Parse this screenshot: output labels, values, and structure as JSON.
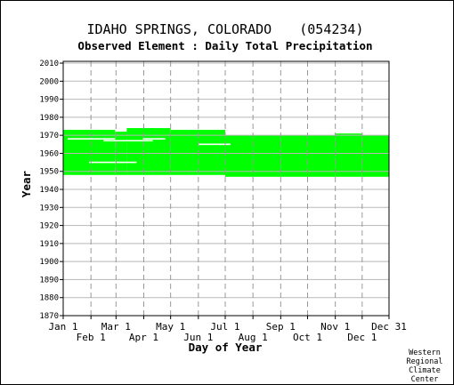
{
  "chart_data": {
    "type": "area",
    "title": "IDAHO SPRINGS, COLORADO",
    "station_id": "(054234)",
    "subtitle": "Observed Element : Daily Total Precipitation",
    "xlabel": "Day of Year",
    "ylabel": "Year",
    "ylim": [
      1870,
      2011
    ],
    "xlim": [
      1,
      365
    ],
    "grid": true,
    "series_color": "#00ff00",
    "ticks_top_row": [
      {
        "label": "Jan 1",
        "day": 1
      },
      {
        "label": "Mar 1",
        "day": 60
      },
      {
        "label": "May 1",
        "day": 121
      },
      {
        "label": "Jul 1",
        "day": 182
      },
      {
        "label": "Sep 1",
        "day": 244
      },
      {
        "label": "Nov 1",
        "day": 305
      },
      {
        "label": "Dec 31",
        "day": 365
      }
    ],
    "ticks_bottom_row": [
      {
        "label": "Feb 1",
        "day": 32
      },
      {
        "label": "Apr 1",
        "day": 91
      },
      {
        "label": "Jun 1",
        "day": 152
      },
      {
        "label": "Aug 1",
        "day": 213
      },
      {
        "label": "Oct 1",
        "day": 274
      },
      {
        "label": "Dec 1",
        "day": 335
      }
    ],
    "y_ticks": [
      2010,
      2000,
      1990,
      1980,
      1970,
      1960,
      1950,
      1940,
      1930,
      1920,
      1910,
      1900,
      1890,
      1880,
      1870
    ],
    "coverage_blocks": [
      {
        "day_start": 1,
        "day_end": 59,
        "year_start": 1948,
        "year_end": 1973
      },
      {
        "day_start": 59,
        "day_end": 72,
        "year_start": 1948,
        "year_end": 1972
      },
      {
        "day_start": 72,
        "day_end": 121,
        "year_start": 1948,
        "year_end": 1974
      },
      {
        "day_start": 121,
        "day_end": 182,
        "year_start": 1948,
        "year_end": 1973
      },
      {
        "day_start": 182,
        "day_end": 244,
        "year_start": 1947,
        "year_end": 1970
      },
      {
        "day_start": 305,
        "day_end": 335,
        "year_start": 1947,
        "year_end": 1971
      },
      {
        "day_start": 335,
        "day_end": 365,
        "year_start": 1947,
        "year_end": 1970
      }
    ],
    "gap_lines": [
      {
        "day_start": 6,
        "day_end": 59,
        "year": 1968
      },
      {
        "day_start": 46,
        "day_end": 101,
        "year": 1967
      },
      {
        "day_start": 30,
        "day_end": 83,
        "year": 1955
      },
      {
        "day_start": 90,
        "day_end": 115,
        "year": 1968
      },
      {
        "day_start": 152,
        "day_end": 188,
        "year": 1965
      }
    ]
  },
  "credit": {
    "line1": "Western",
    "line2": "Regional",
    "line3": "Climate",
    "line4": "Center"
  }
}
